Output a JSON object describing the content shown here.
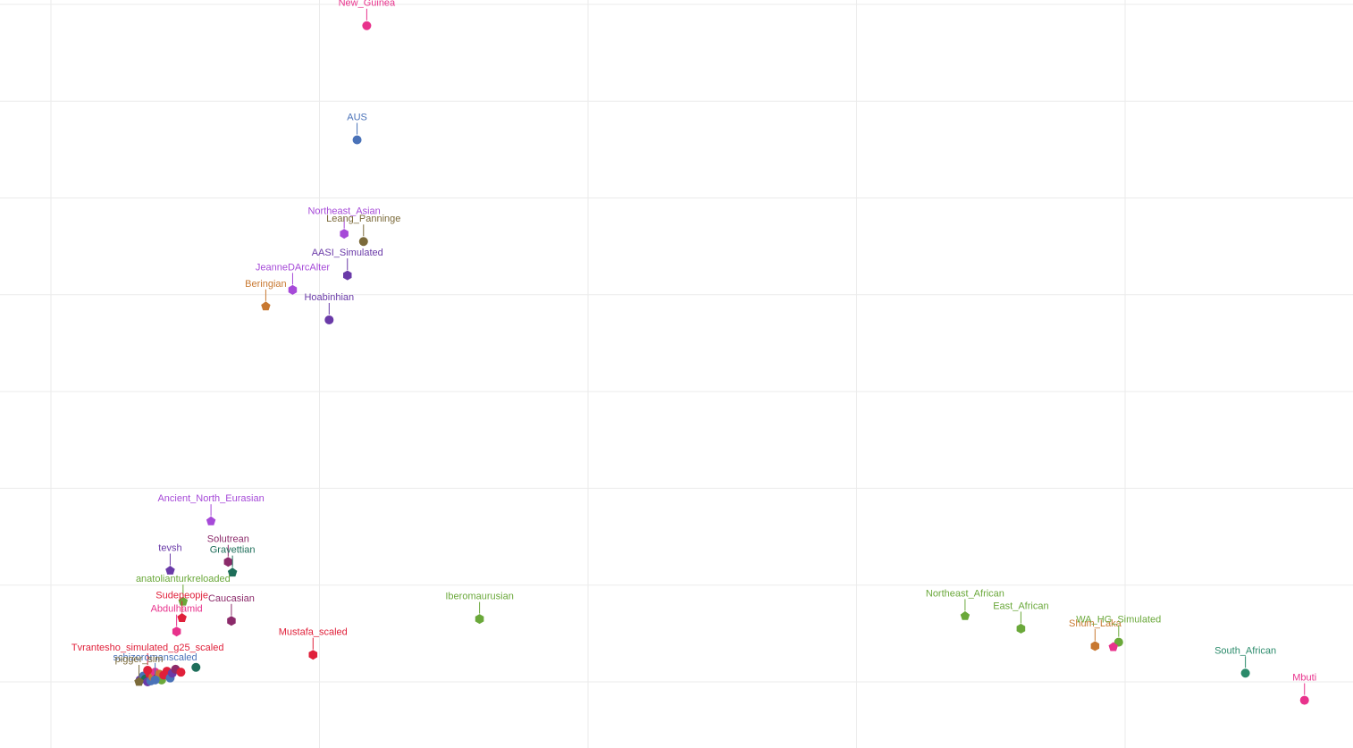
{
  "chart_data": {
    "type": "scatter",
    "title": "",
    "xlabel": "",
    "ylabel": "",
    "xlim": [
      -0.1,
      1.3
    ],
    "ylim": [
      -0.08,
      0.7
    ],
    "grid": true,
    "legend": "none",
    "x_ticks": [
      0,
      0.25,
      0.5,
      0.75,
      1.0,
      1.25
    ],
    "y_ticks": [
      0,
      0.1,
      0.2,
      0.3,
      0.4,
      0.5,
      0.6,
      0.7
    ],
    "points": [
      {
        "label": "New_Guinea",
        "x": 0.294,
        "y": 0.678,
        "color": "#e8328c",
        "shape": "circle"
      },
      {
        "label": "AUS",
        "x": 0.285,
        "y": 0.56,
        "color": "#4a72b8",
        "shape": "circle"
      },
      {
        "label": "Northeast_Asian",
        "x": 0.273,
        "y": 0.463,
        "color": "#a64ad8",
        "shape": "hexagon"
      },
      {
        "label": "Leang_Panninge",
        "x": 0.291,
        "y": 0.455,
        "color": "#7b6a3a",
        "shape": "circle"
      },
      {
        "label": "AASI_Simulated",
        "x": 0.276,
        "y": 0.42,
        "color": "#6a3aa8",
        "shape": "hexagon"
      },
      {
        "label": "JeanneDArcAlter",
        "x": 0.225,
        "y": 0.405,
        "color": "#a64ad8",
        "shape": "hexagon"
      },
      {
        "label": "Beringian",
        "x": 0.2,
        "y": 0.388,
        "color": "#c87830",
        "shape": "pentagon"
      },
      {
        "label": "Hoabinhian",
        "x": 0.259,
        "y": 0.374,
        "color": "#6a3aa8",
        "shape": "circle"
      },
      {
        "label": "Ancient_North_Eurasian",
        "x": 0.149,
        "y": 0.166,
        "color": "#a64ad8",
        "shape": "pentagon"
      },
      {
        "label": "Solutrean",
        "x": 0.165,
        "y": 0.124,
        "color": "#8b2a6a",
        "shape": "hexagon"
      },
      {
        "label": "Gravettian",
        "x": 0.169,
        "y": 0.113,
        "color": "#1e6e5a",
        "shape": "pentagon"
      },
      {
        "label": "tevsh",
        "x": 0.111,
        "y": 0.115,
        "color": "#6a3aa8",
        "shape": "pentagon"
      },
      {
        "label": "anatolianturkreloaded",
        "x": 0.123,
        "y": 0.083,
        "color": "#6aa83a",
        "shape": "pentagon"
      },
      {
        "label": "Sudepeopje",
        "x": 0.122,
        "y": 0.066,
        "color": "#e0203a",
        "shape": "pentagon"
      },
      {
        "label": "Abdulhamid",
        "x": 0.117,
        "y": 0.052,
        "color": "#e8328c",
        "shape": "hexagon"
      },
      {
        "label": "Caucasian",
        "x": 0.168,
        "y": 0.063,
        "color": "#8b2a6a",
        "shape": "hexagon"
      },
      {
        "label": "Iberomaurusian",
        "x": 0.399,
        "y": 0.065,
        "color": "#6aa83a",
        "shape": "hexagon"
      },
      {
        "label": "Mustafa_scaled",
        "x": 0.244,
        "y": 0.028,
        "color": "#e0203a",
        "shape": "hexagon"
      },
      {
        "label": "Tvrantesho_simulated_g25_scaled",
        "x": 0.09,
        "y": 0.012,
        "color": "#e0203a",
        "shape": "circle"
      },
      {
        "label": "schizoromanscaled",
        "x": 0.097,
        "y": 0.002,
        "color": "#4a72b8",
        "shape": "circle"
      },
      {
        "label": "pigger_sim",
        "x": 0.082,
        "y": 0.0,
        "color": "#7b6a3a",
        "shape": "pentagon"
      },
      {
        "label": "Northeast_African",
        "x": 0.851,
        "y": 0.068,
        "color": "#6aa83a",
        "shape": "pentagon"
      },
      {
        "label": "East_African",
        "x": 0.903,
        "y": 0.055,
        "color": "#6aa83a",
        "shape": "hexagon"
      },
      {
        "label": "Shum_Laka",
        "x": 0.972,
        "y": 0.037,
        "color": "#c87830",
        "shape": "hexagon"
      },
      {
        "label": "WA_HG_Simulated",
        "x": 0.994,
        "y": 0.041,
        "color": "#6aa83a",
        "shape": "circle"
      },
      {
        "label": "",
        "x": 0.989,
        "y": 0.036,
        "color": "#e8328c",
        "shape": "pentagon"
      },
      {
        "label": "South_African",
        "x": 1.112,
        "y": 0.009,
        "color": "#2a8a6a",
        "shape": "circle"
      },
      {
        "label": "Mbuti",
        "x": 1.167,
        "y": -0.019,
        "color": "#e8328c",
        "shape": "circle"
      }
    ],
    "cluster": [
      {
        "x": 0.083,
        "y": 0.002,
        "color": "#6a3aa8"
      },
      {
        "x": 0.086,
        "y": 0.006,
        "color": "#4a72b8"
      },
      {
        "x": 0.088,
        "y": 0.003,
        "color": "#1e6e5a"
      },
      {
        "x": 0.09,
        "y": 0.0,
        "color": "#6a3aa8"
      },
      {
        "x": 0.092,
        "y": 0.008,
        "color": "#e0203a"
      },
      {
        "x": 0.093,
        "y": 0.001,
        "color": "#4a72b8"
      },
      {
        "x": 0.095,
        "y": 0.005,
        "color": "#c87830"
      },
      {
        "x": 0.097,
        "y": 0.01,
        "color": "#e8328c"
      },
      {
        "x": 0.099,
        "y": 0.004,
        "color": "#8b2a6a"
      },
      {
        "x": 0.101,
        "y": 0.008,
        "color": "#c87830"
      },
      {
        "x": 0.103,
        "y": 0.002,
        "color": "#6aa83a"
      },
      {
        "x": 0.105,
        "y": 0.007,
        "color": "#e0203a"
      },
      {
        "x": 0.108,
        "y": 0.011,
        "color": "#e0203a"
      },
      {
        "x": 0.111,
        "y": 0.004,
        "color": "#4a72b8"
      },
      {
        "x": 0.113,
        "y": 0.009,
        "color": "#6a3aa8"
      },
      {
        "x": 0.116,
        "y": 0.013,
        "color": "#8b2a6a"
      },
      {
        "x": 0.121,
        "y": 0.01,
        "color": "#e0203a"
      },
      {
        "x": 0.135,
        "y": 0.015,
        "color": "#1e6e5a"
      }
    ]
  }
}
